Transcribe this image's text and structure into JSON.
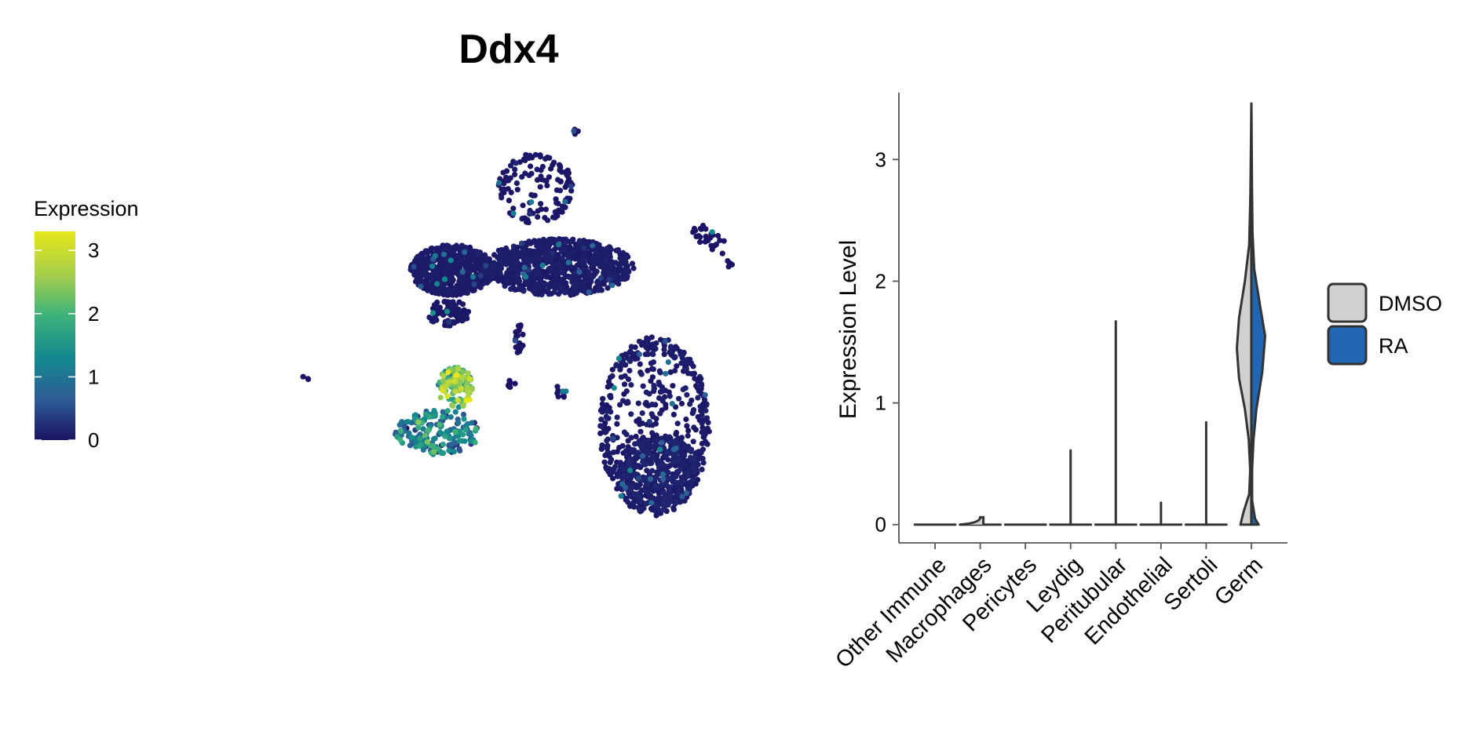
{
  "chart_data": [
    {
      "type": "scatter",
      "title": "Ddx4",
      "legend": {
        "title": "Expression",
        "ticks": [
          0,
          1,
          2,
          3
        ],
        "range": [
          0,
          3.3
        ],
        "colors": [
          "#1b1466",
          "#2d5e96",
          "#13898e",
          "#3fb27a",
          "#a8d049",
          "#e8e61a"
        ],
        "position": "left"
      },
      "grid": false,
      "axes": false,
      "clusters": [
        {
          "cx": 12.6,
          "cy": 7.35,
          "rx": 2.4,
          "ry": 0.85,
          "n": 620,
          "expr_mean": 0.04
        },
        {
          "cx": 18.8,
          "cy": 7.45,
          "rx": 4.4,
          "ry": 0.95,
          "n": 900,
          "expr_mean": 0.05
        },
        {
          "cx": 17.5,
          "cy": 10.1,
          "rx": 2.2,
          "ry": 1.2,
          "n": 130,
          "expr_mean": 0.02,
          "ring": true
        },
        {
          "cx": 12.4,
          "cy": 5.9,
          "rx": 1.2,
          "ry": 0.45,
          "n": 80,
          "expr_mean": 0.03
        },
        {
          "cx": 24.4,
          "cy": 2.1,
          "rx": 3.2,
          "ry": 3.0,
          "n": 520,
          "expr_mean": 0.05,
          "ring": true
        },
        {
          "cx": 24.6,
          "cy": 0.6,
          "rx": 2.3,
          "ry": 1.2,
          "n": 420,
          "expr_mean": 0.08
        },
        {
          "cx": 11.8,
          "cy": 1.9,
          "rx": 2.5,
          "ry": 0.75,
          "n": 180,
          "expr_mean": 1.05
        },
        {
          "cx": 12.8,
          "cy": 3.4,
          "rx": 1.05,
          "ry": 0.7,
          "n": 110,
          "expr_mean": 2.3
        },
        {
          "cx": 27.6,
          "cy": 8.4,
          "rx": 1.2,
          "ry": 0.35,
          "n": 28,
          "expr_mean": 0.0,
          "tilt": -0.35
        },
        {
          "cx": 16.5,
          "cy": 5.0,
          "rx": 0.25,
          "ry": 0.6,
          "n": 18,
          "expr_mean": 0.0
        },
        {
          "cx": 19.8,
          "cy": 12.0,
          "rx": 0.15,
          "ry": 0.1,
          "n": 6,
          "expr_mean": 0.0
        },
        {
          "cx": 16.1,
          "cy": 3.6,
          "rx": 0.3,
          "ry": 0.2,
          "n": 7,
          "expr_mean": 0.0
        },
        {
          "cx": 4.0,
          "cy": 3.7,
          "rx": 0.3,
          "ry": 0.2,
          "n": 3,
          "expr_mean": 0.0
        },
        {
          "cx": 28.8,
          "cy": 7.6,
          "rx": 0.2,
          "ry": 0.15,
          "n": 5,
          "expr_mean": 0.0
        },
        {
          "cx": 19.0,
          "cy": 3.3,
          "rx": 0.35,
          "ry": 0.25,
          "n": 10,
          "expr_mean": 0.0
        }
      ],
      "xlim": [
        0,
        32
      ],
      "ylim": [
        -1.5,
        13
      ]
    },
    {
      "type": "violin",
      "title": "",
      "xlabel": "",
      "ylabel": "Expression Level",
      "ylim": [
        -0.15,
        3.55
      ],
      "yticks": [
        0,
        1,
        2,
        3
      ],
      "categories": [
        "Other Immune",
        "Macrophages",
        "Pericytes",
        "Leydig",
        "Peritubular",
        "Endothelial",
        "Sertoli",
        "Germ"
      ],
      "max_values": [
        0.0,
        0.06,
        0.0,
        0.61,
        1.67,
        0.18,
        0.84,
        3.46
      ],
      "germ_split": {
        "DMSO": {
          "median": 1.45,
          "max": 3.46
        },
        "RA": {
          "median": 1.55,
          "max": 3.46
        }
      },
      "series": [
        {
          "name": "DMSO",
          "color": "#d0d0d0"
        },
        {
          "name": "RA",
          "color": "#2166b3"
        }
      ],
      "legend_position": "right"
    }
  ]
}
